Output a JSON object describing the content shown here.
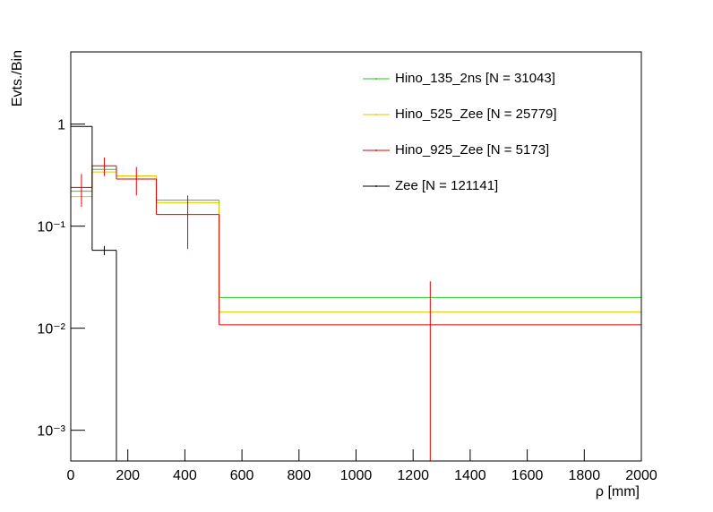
{
  "chart_data": {
    "type": "histogram",
    "y_label": "Evts./Bin",
    "x_label": "ρ [mm]",
    "bins": [
      0,
      75,
      160,
      300,
      520,
      2000
    ],
    "xlim": [
      0,
      2000
    ],
    "xticks": [
      0,
      200,
      400,
      600,
      800,
      1000,
      1200,
      1400,
      1600,
      1800,
      2000
    ],
    "ylim": [
      0.0005,
      5.1
    ],
    "ylog": true,
    "yticks": [
      {
        "value": 0.001,
        "label": "10⁻³"
      },
      {
        "value": 0.01,
        "label": "10⁻²"
      },
      {
        "value": 0.1,
        "label": "10⁻¹"
      },
      1
    ],
    "legend": "top-right",
    "series": [
      {
        "name": "Hino_135_2ns [N = 31043]",
        "color": "#22cc22",
        "values": [
          0.22,
          0.36,
          0.31,
          0.18,
          0.02
        ],
        "errors": [
          null,
          null,
          null,
          null,
          null
        ]
      },
      {
        "name": "Hino_525_Zee [N = 25779]",
        "color": "#f0c000",
        "values": [
          0.195,
          0.34,
          0.31,
          0.17,
          0.0144
        ],
        "errors": [
          null,
          null,
          null,
          null,
          null
        ]
      },
      {
        "name": "Hino_925_Zee [N = 5173]",
        "color": "#dd0000",
        "values": [
          0.24,
          0.39,
          0.29,
          0.13,
          0.0108
        ],
        "errors": [
          0.085,
          0.08,
          0.09,
          0.07,
          0.018
        ]
      },
      {
        "name": "Zee [N = 121141]",
        "color": "#000000",
        "values": [
          0.95,
          0.058,
          0,
          0,
          0
        ],
        "errors": [
          null,
          0.006,
          null,
          null,
          null
        ]
      }
    ]
  }
}
